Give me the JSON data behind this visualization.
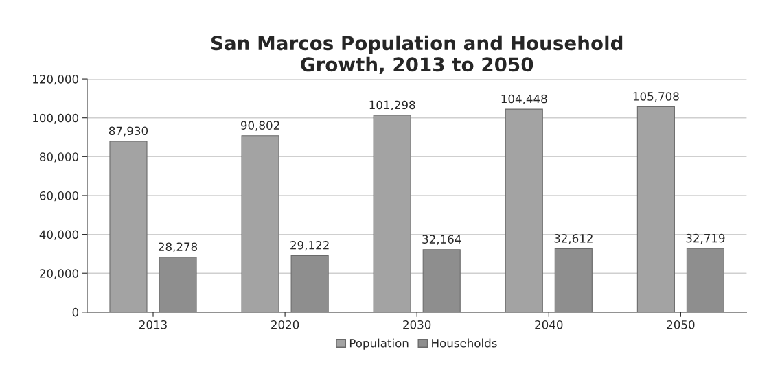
{
  "chart_data": {
    "type": "bar",
    "title": "San Marcos Population and Household\nGrowth, 2013 to 2050",
    "categories": [
      "2013",
      "2020",
      "2030",
      "2040",
      "2050"
    ],
    "series": [
      {
        "name": "Population",
        "color": "#a3a3a3",
        "values": [
          87930,
          90802,
          101298,
          104448,
          105708
        ],
        "value_labels": [
          "87,930",
          "90,802",
          "101,298",
          "104,448",
          "105,708"
        ]
      },
      {
        "name": "Households",
        "color": "#8e8e8e",
        "values": [
          28278,
          29122,
          32164,
          32612,
          32719
        ],
        "value_labels": [
          "28,278",
          "29,122",
          "32,164",
          "32,612",
          "32,719"
        ]
      }
    ],
    "ylim": [
      0,
      120000
    ],
    "yticks": [
      0,
      {
        "value": 20000,
        "label": "20,000"
      },
      {
        "value": 40000,
        "label": "40,000"
      },
      {
        "value": 60000,
        "label": "60,000"
      },
      {
        "value": 80000,
        "label": "80,000"
      },
      {
        "value": 100000,
        "label": "100,000"
      },
      {
        "value": 120000,
        "label": "120,000"
      }
    ],
    "grid": "y",
    "legend": "bottom"
  }
}
